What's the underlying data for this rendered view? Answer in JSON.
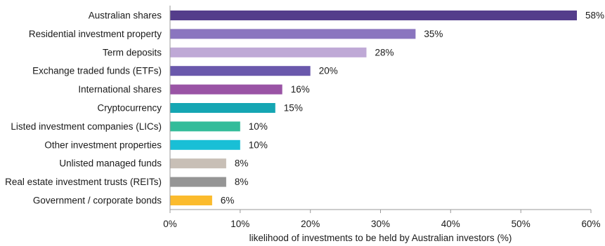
{
  "chart_data": {
    "type": "bar",
    "orientation": "horizontal",
    "title": "",
    "xlabel": "likelihood of investments to be held by Australian investors (%)",
    "ylabel": "",
    "xlim": [
      0,
      60
    ],
    "x_ticks": [
      "0%",
      "10%",
      "20%",
      "30%",
      "40%",
      "50%",
      "60%"
    ],
    "x_tick_values": [
      0,
      10,
      20,
      30,
      40,
      50,
      60
    ],
    "grid": false,
    "legend": "none",
    "categories": [
      "Australian shares",
      "Residential investment property",
      "Term deposits",
      "Exchange traded funds (ETFs)",
      "International shares",
      "Cryptocurrency",
      "Listed investment companies (LICs)",
      "Other investment properties",
      "Unlisted managed funds",
      "Real estate investment trusts (REITs)",
      "Government / corporate bonds"
    ],
    "values": [
      58,
      35,
      28,
      20,
      16,
      15,
      10,
      10,
      8,
      8,
      6
    ],
    "value_labels": [
      "58%",
      "35%",
      "28%",
      "20%",
      "16%",
      "15%",
      "10%",
      "10%",
      "8%",
      "8%",
      "6%"
    ],
    "colors": [
      "#543d8b",
      "#8a75bf",
      "#bfa9d6",
      "#6a58ac",
      "#9a54a5",
      "#15a6b3",
      "#33bc9a",
      "#19bfd6",
      "#c8bfb6",
      "#959595",
      "#fbbb2d"
    ]
  }
}
